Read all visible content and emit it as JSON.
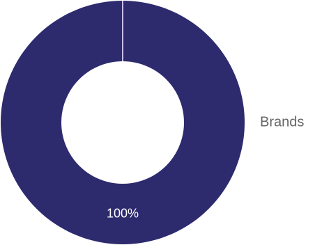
{
  "chart_data": {
    "type": "pie",
    "donut": true,
    "categories": [
      "Brands"
    ],
    "values": [
      100
    ],
    "value_labels": [
      "100%"
    ],
    "colors": [
      "#2d2a6e"
    ]
  }
}
